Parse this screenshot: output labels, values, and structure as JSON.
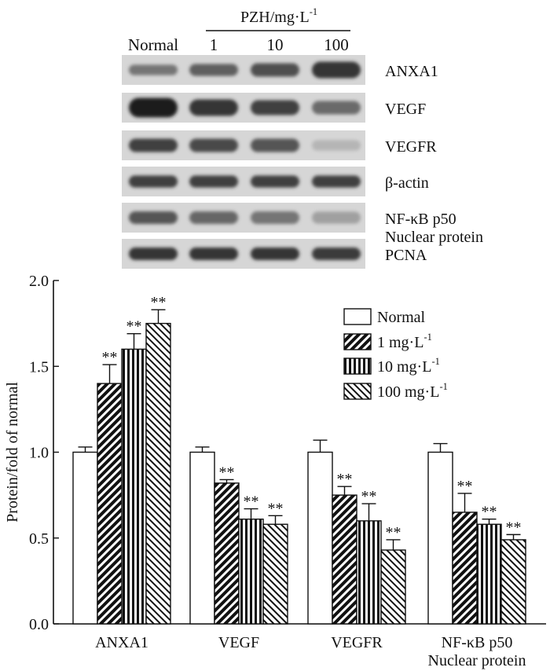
{
  "blot": {
    "header_group": "PZH/mg·L",
    "header_group_sup": "-1",
    "lane_labels": [
      "Normal",
      "1",
      "10",
      "100"
    ],
    "rows": [
      {
        "label": "ANXA1",
        "intensity": [
          0.55,
          0.65,
          0.72,
          0.85
        ],
        "height": [
          0.35,
          0.4,
          0.45,
          0.55
        ]
      },
      {
        "label": "VEGF",
        "intensity": [
          0.95,
          0.85,
          0.8,
          0.6
        ],
        "height": [
          0.65,
          0.55,
          0.5,
          0.45
        ]
      },
      {
        "label": "VEGFR",
        "intensity": [
          0.8,
          0.75,
          0.7,
          0.25
        ],
        "height": [
          0.45,
          0.45,
          0.45,
          0.35
        ]
      },
      {
        "label": "β-actin",
        "intensity": [
          0.8,
          0.8,
          0.8,
          0.8
        ],
        "height": [
          0.4,
          0.4,
          0.4,
          0.4
        ]
      },
      {
        "label": "NF-κB p50",
        "sublabel": "Nuclear protein",
        "intensity": [
          0.7,
          0.62,
          0.55,
          0.35
        ],
        "height": [
          0.42,
          0.42,
          0.42,
          0.4
        ]
      },
      {
        "label": "PCNA",
        "intensity": [
          0.85,
          0.85,
          0.85,
          0.82
        ],
        "height": [
          0.42,
          0.42,
          0.42,
          0.42
        ]
      }
    ]
  },
  "chart_data": {
    "type": "bar",
    "ylabel": "Protein/fold of normal",
    "ylim": [
      0,
      2.0
    ],
    "yticks": [
      "0.0",
      "0.5",
      "1.0",
      "1.5",
      "2.0"
    ],
    "categories": [
      "ANXA1",
      "VEGF",
      "VEGFR",
      "NF-κB p50"
    ],
    "category_sublabels": [
      "",
      "",
      "",
      "Nuclear protein"
    ],
    "series": [
      {
        "name": "Normal",
        "unit_sup": "",
        "pattern": "white",
        "values": [
          1.0,
          1.0,
          1.0,
          1.0
        ],
        "errors": [
          0.03,
          0.03,
          0.07,
          0.05
        ],
        "sig": [
          "",
          "",
          "",
          ""
        ]
      },
      {
        "name": "1 mg·L",
        "unit_sup": "-1",
        "pattern": "diag-right",
        "values": [
          1.4,
          0.82,
          0.75,
          0.65
        ],
        "errors": [
          0.11,
          0.02,
          0.05,
          0.11
        ],
        "sig": [
          "**",
          "**",
          "**",
          "**"
        ]
      },
      {
        "name": "10 mg·L",
        "unit_sup": "-1",
        "pattern": "vertical",
        "values": [
          1.6,
          0.61,
          0.6,
          0.58
        ],
        "errors": [
          0.09,
          0.06,
          0.1,
          0.03
        ],
        "sig": [
          "**",
          "**",
          "**",
          "**"
        ]
      },
      {
        "name": "100 mg·L",
        "unit_sup": "-1",
        "pattern": "diag-left",
        "values": [
          1.75,
          0.58,
          0.43,
          0.49
        ],
        "errors": [
          0.08,
          0.05,
          0.06,
          0.03
        ],
        "sig": [
          "**",
          "**",
          "**",
          "**"
        ]
      }
    ],
    "legend_position": "top-right",
    "grid": false
  }
}
